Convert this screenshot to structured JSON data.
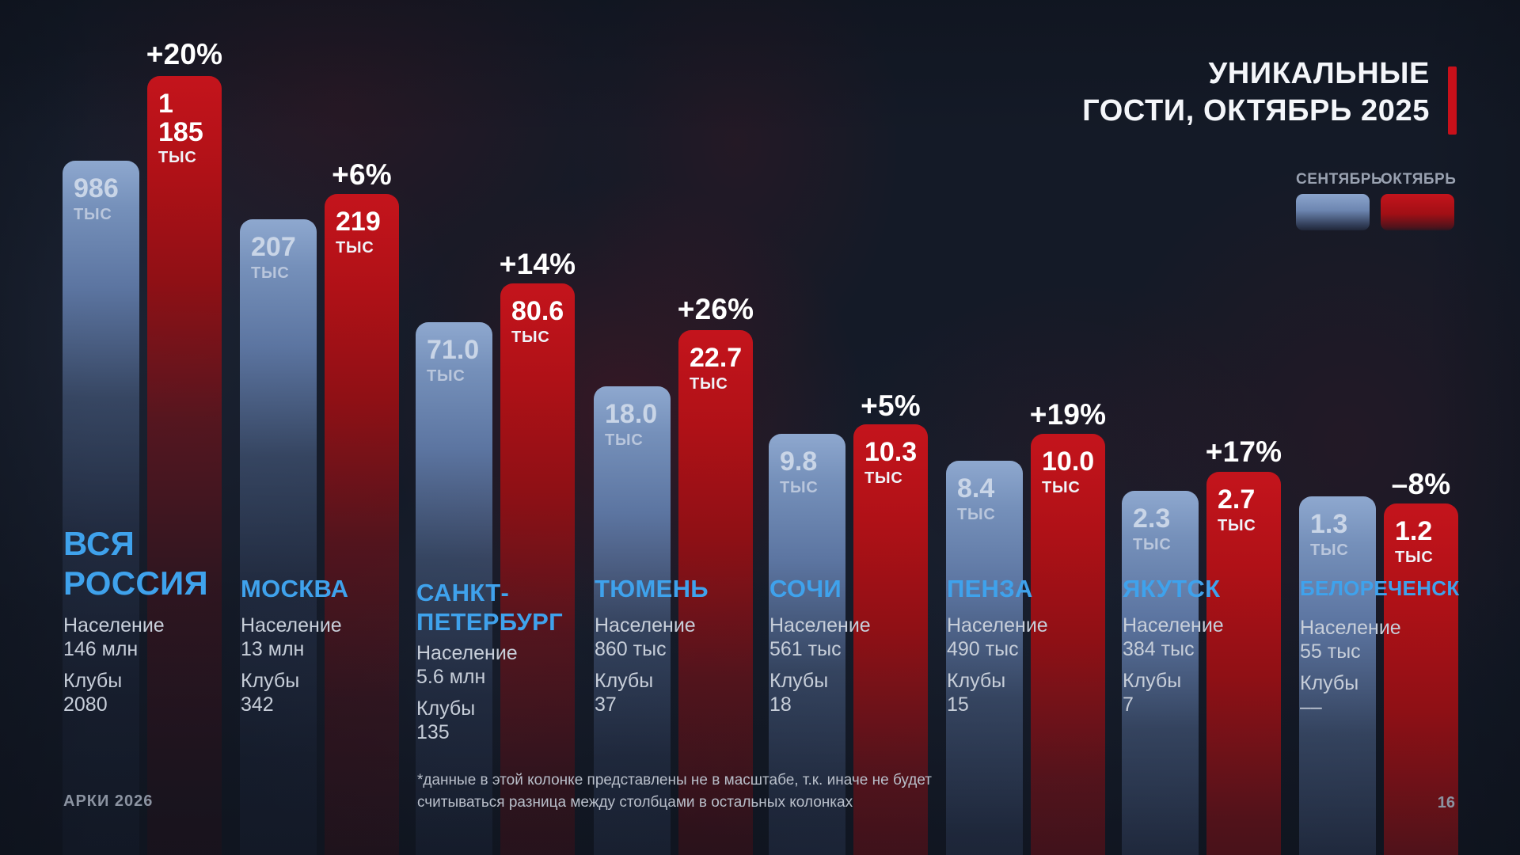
{
  "title": {
    "line1": "УНИКАЛЬНЫЕ",
    "line2": "ГОСТИ, ОКТЯБРЬ 2025"
  },
  "legend": {
    "september": "СЕНТЯБРЬ",
    "october": "ОКТЯБРЬ"
  },
  "theme": {
    "background": "#141a27",
    "accent_red": "#c8101a",
    "october_bar_red": "#c4141c",
    "september_bar_blue": "#8ea8cf",
    "city_label_blue": "#3fa2ec",
    "info_text": "#c7ced9",
    "muted_text": "#8b93a1"
  },
  "footnote": {
    "line1": "*данные в этой колонке представлены не в масштабе, т.к. иначе не будет",
    "line2": "считываться разница между столбцами в остальных колонках"
  },
  "footer": {
    "brand": "АРКИ 2026",
    "page": "16"
  },
  "columns": [
    {
      "name1": "ВСЯ",
      "name2": "РОССИЯ",
      "sep_value": "986",
      "oct_value": "1 185",
      "unit": "ТЫС",
      "pct": "+20%",
      "population_label": "Население",
      "population": "146 млн",
      "clubs_label": "Клубы",
      "clubs": "2080"
    },
    {
      "name1": "МОСКВА",
      "sep_value": "207",
      "oct_value": "219",
      "unit": "ТЫС",
      "pct": "+6%",
      "population_label": "Население",
      "population": "13 млн",
      "clubs_label": "Клубы",
      "clubs": "342"
    },
    {
      "name1": "САНКТ-",
      "name2": "ПЕТЕРБУРГ",
      "sep_value": "71.0",
      "oct_value": "80.6",
      "unit": "ТЫС",
      "pct": "+14%",
      "population_label": "Население",
      "population": "5.6 млн",
      "clubs_label": "Клубы",
      "clubs": "135"
    },
    {
      "name1": "ТЮМЕНЬ",
      "sep_value": "18.0",
      "oct_value": "22.7",
      "unit": "ТЫС",
      "pct": "+26%",
      "population_label": "Население",
      "population": "860 тыс",
      "clubs_label": "Клубы",
      "clubs": "37"
    },
    {
      "name1": "СОЧИ",
      "sep_value": "9.8",
      "oct_value": "10.3",
      "unit": "ТЫС",
      "pct": "+5%",
      "population_label": "Население",
      "population": "561 тыс",
      "clubs_label": "Клубы",
      "clubs": "18"
    },
    {
      "name1": "ПЕНЗА",
      "sep_value": "8.4",
      "oct_value": "10.0",
      "unit": "ТЫС",
      "pct": "+19%",
      "population_label": "Население",
      "population": "490 тыс",
      "clubs_label": "Клубы",
      "clubs": "15"
    },
    {
      "name1": "ЯКУТСК",
      "sep_value": "2.3",
      "oct_value": "2.7",
      "unit": "ТЫС",
      "pct": "+17%",
      "population_label": "Население",
      "population": "384 тыс",
      "clubs_label": "Клубы",
      "clubs": "7"
    },
    {
      "name1": "БЕЛОРЕЧЕНСК",
      "sep_value": "1.3",
      "oct_value": "1.2",
      "unit": "ТЫС",
      "pct": "–8%",
      "population_label": "Население",
      "population": "55 тыс",
      "clubs_label": "Клубы",
      "clubs": "––"
    }
  ],
  "chart_data": {
    "type": "bar",
    "title": "УНИКАЛЬНЫЕ ГОСТИ, ОКТЯБРЬ 2025",
    "unit": "тыс",
    "legend_position": "top-right",
    "grid": false,
    "categories": [
      "ВСЯ РОССИЯ",
      "МОСКВА",
      "САНКТ-ПЕТЕРБУРГ",
      "ТЮМЕНЬ",
      "СОЧИ",
      "ПЕНЗА",
      "ЯКУТСК",
      "БЕЛОРЕЧЕНСК"
    ],
    "series": [
      {
        "name": "СЕНТЯБРЬ",
        "values": [
          986,
          207,
          71.0,
          18.0,
          9.8,
          8.4,
          2.3,
          1.3
        ]
      },
      {
        "name": "ОКТЯБРЬ",
        "values": [
          1185,
          219,
          80.6,
          22.7,
          10.3,
          10.0,
          2.7,
          1.2
        ]
      }
    ],
    "change_pct": [
      "+20%",
      "+6%",
      "+14%",
      "+26%",
      "+5%",
      "+19%",
      "+17%",
      "–8%"
    ],
    "population": [
      "146 млн",
      "13 млн",
      "5.6 млн",
      "860 тыс",
      "561 тыс",
      "490 тыс",
      "384 тыс",
      "55 тыс"
    ],
    "clubs": [
      "2080",
      "342",
      "135",
      "37",
      "18",
      "15",
      "7",
      "––"
    ],
    "note": "данные в этой колонке представлены не в масштабе, т.к. иначе не будет считываться разница между столбцами в остальных колонках"
  }
}
